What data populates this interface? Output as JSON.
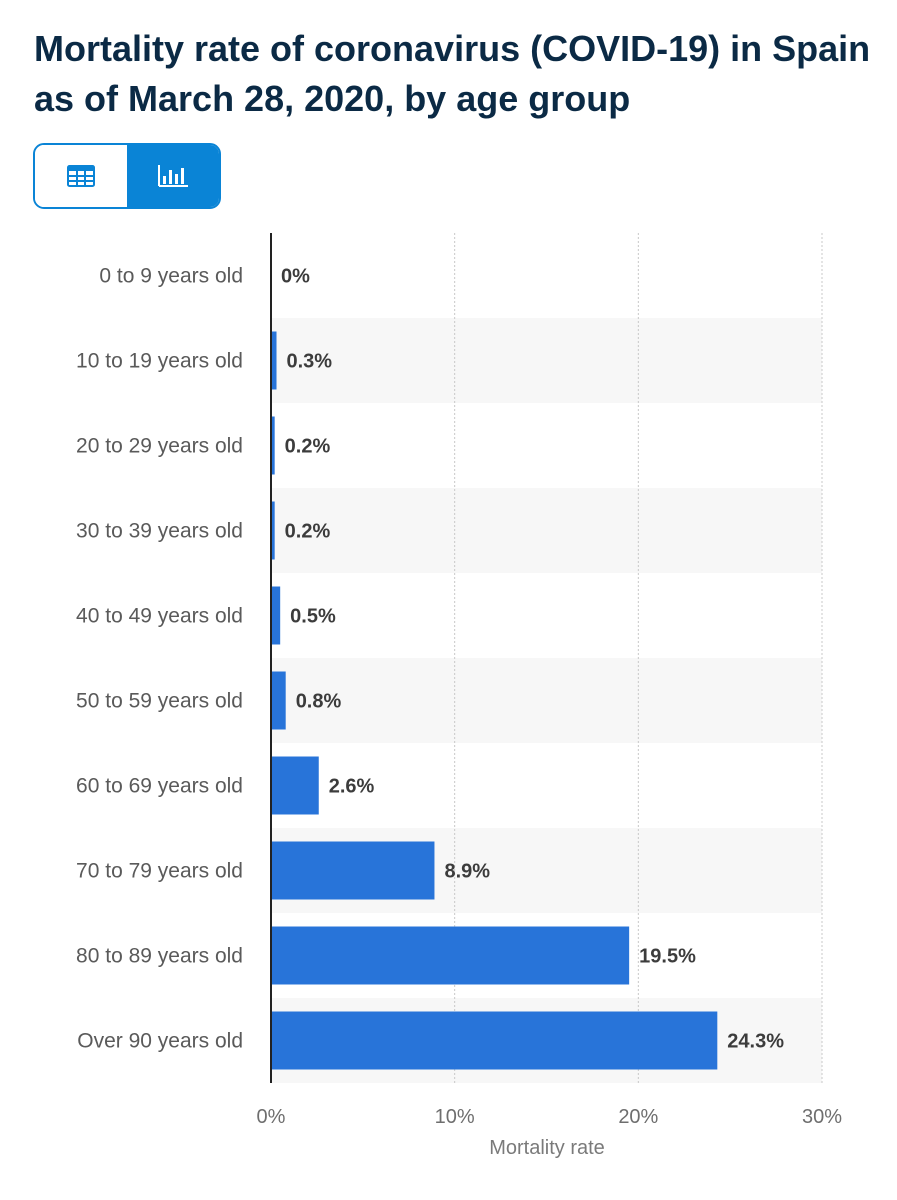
{
  "header": {
    "title": "Mortality rate of coronavirus (COVID-19) in Spain as of March 28, 2020, by age group"
  },
  "view_toggle": {
    "options": [
      {
        "icon": "table-icon",
        "selected": false
      },
      {
        "icon": "bar-chart-icon",
        "selected": true
      }
    ],
    "accent_color": "#0a84d6"
  },
  "chart_data": {
    "type": "bar",
    "orientation": "horizontal",
    "categories": [
      "0 to 9 years old",
      "10 to 19 years old",
      "20 to 29 years old",
      "30 to 39 years old",
      "40 to 49 years old",
      "50 to 59 years old",
      "60 to 69 years old",
      "70 to 79 years old",
      "80 to 89 years old",
      "Over 90 years old"
    ],
    "values": [
      0,
      0.3,
      0.2,
      0.2,
      0.5,
      0.8,
      2.6,
      8.9,
      19.5,
      24.3
    ],
    "data_labels": [
      "0%",
      "0.3%",
      "0.2%",
      "0.2%",
      "0.5%",
      "0.8%",
      "2.6%",
      "8.9%",
      "19.5%",
      "24.3%"
    ],
    "xlabel": "Mortality rate",
    "ylabel": "",
    "xlim": [
      0,
      30
    ],
    "xticks": [
      0,
      10,
      20,
      30
    ],
    "xtick_labels": [
      "0%",
      "10%",
      "20%",
      "30%"
    ],
    "grid": true,
    "bar_color": "#2874d9"
  }
}
